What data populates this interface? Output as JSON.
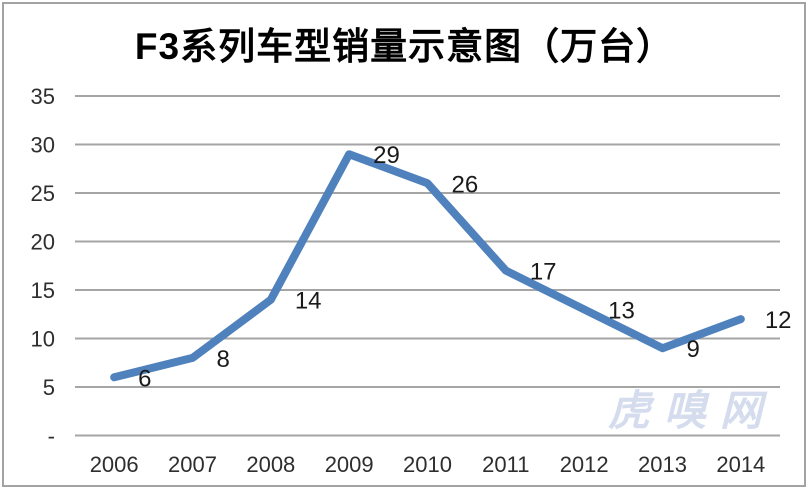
{
  "chart_data": {
    "type": "line",
    "title": "F3系列车型销量示意图（万台）",
    "categories": [
      "2006",
      "2007",
      "2008",
      "2009",
      "2010",
      "2011",
      "2012",
      "2013",
      "2014"
    ],
    "series": [
      {
        "name": "F3系列车型销量",
        "values": [
          6,
          8,
          14,
          29,
          26,
          17,
          13,
          9,
          12
        ]
      }
    ],
    "data_labels_shown": true,
    "xlabel": "",
    "ylabel": "",
    "ylim": [
      0,
      35
    ],
    "yticks": [
      {
        "value": 0,
        "label": "-"
      },
      {
        "value": 5,
        "label": "5"
      },
      {
        "value": 10,
        "label": "10"
      },
      {
        "value": 15,
        "label": "15"
      },
      {
        "value": 20,
        "label": "20"
      },
      {
        "value": 25,
        "label": "25"
      },
      {
        "value": 30,
        "label": "30"
      },
      {
        "value": 35,
        "label": "35"
      }
    ],
    "grid": true,
    "legend_position": "none",
    "watermark": "虎嗅网",
    "colors": {
      "line": "#4F81BD",
      "gridline": "#A5A5A5",
      "axis_text": "#2e2e2e",
      "label_text": "#1a1a1a",
      "watermark": "#D4DCEE",
      "border": "#A3A3A3",
      "title": "#000000"
    }
  }
}
